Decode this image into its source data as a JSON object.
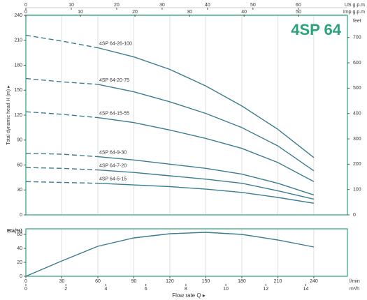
{
  "chart_data": [
    {
      "type": "line",
      "title": "4SP 64",
      "title_color": "#2aa37a",
      "frame_color": "#2aa37a",
      "x": [
        0,
        30,
        60,
        90,
        120,
        150,
        180,
        210,
        240
      ],
      "xlim": [
        0,
        268
      ],
      "dashed_x_max": 60,
      "top_axes": [
        {
          "label": "US g.p.m",
          "xlim": [
            0,
            70.8
          ],
          "xticks": [
            0,
            10,
            20,
            30,
            40,
            50,
            60
          ]
        },
        {
          "label": "Imp g.p.m",
          "xlim": [
            0,
            58.95
          ],
          "xticks": [
            0,
            10,
            20,
            30,
            40,
            50
          ]
        }
      ],
      "y_label": "Total dynamic head  H (m) ▸",
      "ylim": [
        0,
        240
      ],
      "yticks": [
        0,
        30,
        60,
        90,
        120,
        150,
        180,
        210,
        240
      ],
      "y2_label": "feet",
      "y2lim": [
        0,
        787.4
      ],
      "y2ticks": [
        0,
        100,
        200,
        300,
        400,
        500,
        600,
        700
      ],
      "series": [
        {
          "name": "4SP 64-26-100",
          "color": "#3b7d8f",
          "values": [
            216,
            209,
            201,
            190,
            175,
            155,
            131,
            103,
            69
          ]
        },
        {
          "name": "4SP 64-20-75",
          "color": "#3b7d8f",
          "values": [
            164,
            160,
            157,
            148,
            136,
            122,
            105,
            83,
            53
          ]
        },
        {
          "name": "4SP 64-15-55",
          "color": "#3b7d8f",
          "values": [
            124,
            121,
            117,
            111,
            102,
            92,
            80,
            63,
            40
          ]
        },
        {
          "name": "4SP 64-9-30",
          "color": "#3b7d8f",
          "values": [
            74,
            73,
            70,
            66,
            61,
            56,
            49,
            38,
            24
          ]
        },
        {
          "name": "4SP 64-7-20",
          "color": "#3b7d8f",
          "values": [
            57,
            56,
            54,
            51,
            47,
            43,
            38,
            29,
            19
          ]
        },
        {
          "name": "4SP 64-5-15",
          "color": "#3b7d8f",
          "values": [
            40,
            39,
            38,
            36,
            34,
            31,
            27,
            21,
            14
          ]
        }
      ]
    },
    {
      "type": "line",
      "y_label": "Eta(%)",
      "ylim": [
        0,
        68
      ],
      "yticks": [
        0,
        20,
        40,
        60
      ],
      "x": [
        0,
        30,
        60,
        90,
        120,
        150,
        180,
        210,
        240
      ],
      "xlim": [
        0,
        268
      ],
      "x_title": "Flow rate  Q  ▸",
      "bottom_axes": [
        {
          "label": "l/min",
          "xlim": [
            0,
            268
          ],
          "xticks": [
            0,
            30,
            60,
            90,
            120,
            150,
            180,
            210,
            240
          ]
        },
        {
          "label": "m³/h",
          "xlim": [
            0,
            16.08
          ],
          "xticks": [
            0,
            2,
            4,
            6,
            8,
            10,
            12,
            14
          ]
        }
      ],
      "series": [
        {
          "name": "Eta",
          "color": "#3b7d8f",
          "values": [
            0,
            22,
            43,
            55,
            61,
            63,
            60,
            52,
            42
          ]
        }
      ]
    }
  ]
}
